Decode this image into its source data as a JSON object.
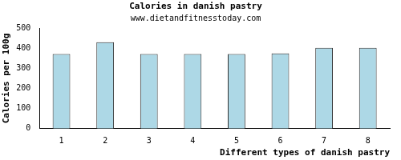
{
  "chart_data": {
    "type": "bar",
    "title": "Calories in danish pastry",
    "subtitle": "www.dietandfitnesstoday.com",
    "x_label": "Different types of danish pastry",
    "y_label": "Calories per 100g",
    "categories": [
      "1",
      "2",
      "3",
      "4",
      "5",
      "6",
      "7",
      "8"
    ],
    "values": [
      371,
      430,
      371,
      371,
      371,
      374,
      402,
      402
    ],
    "color": "#add8e6",
    "ylim": [
      0,
      500
    ],
    "yticks": [
      0,
      100,
      200,
      300,
      400,
      500
    ],
    "grid": false
  }
}
